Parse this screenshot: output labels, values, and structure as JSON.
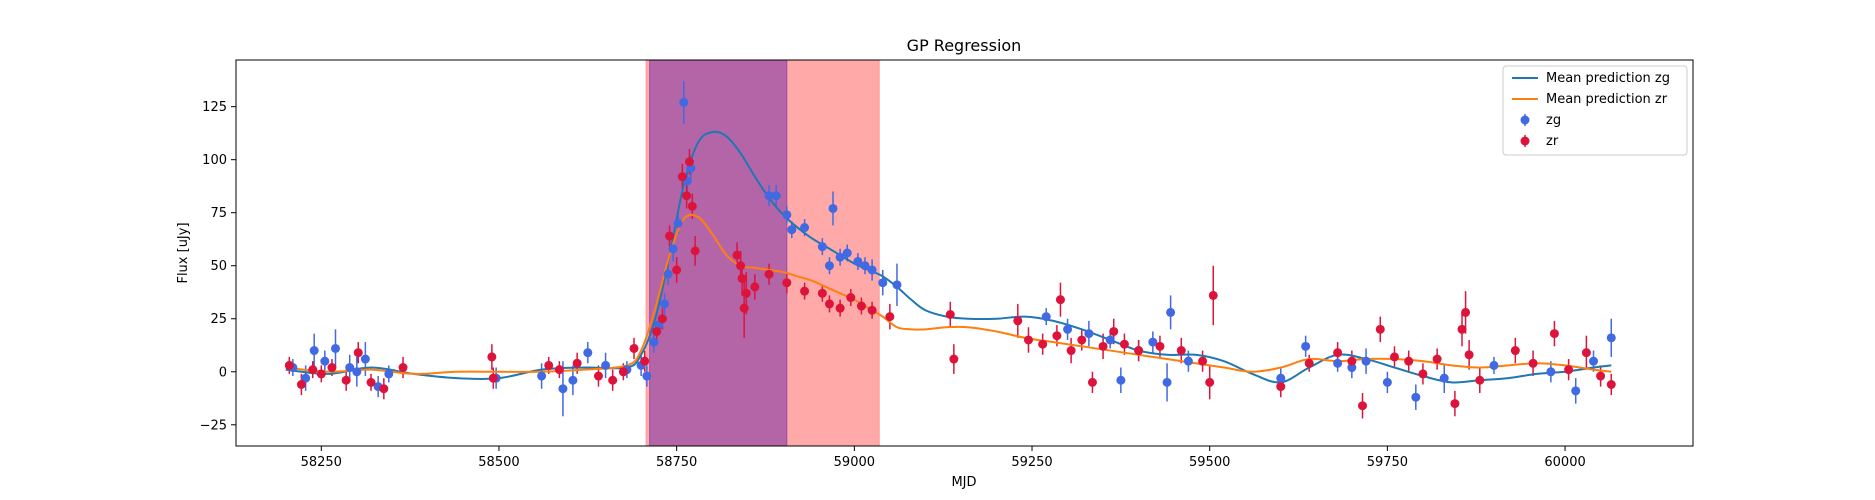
{
  "chart_data": {
    "type": "scatter",
    "title": "GP Regression",
    "xlabel": "MJD",
    "ylabel": "Flux [uJy]",
    "xlim": [
      58130,
      60180
    ],
    "ylim": [
      -35,
      147
    ],
    "xticks": [
      58250,
      58500,
      58750,
      59000,
      59250,
      59500,
      59750,
      60000
    ],
    "yticks": [
      -25,
      0,
      25,
      50,
      75,
      100,
      125
    ],
    "grid": false,
    "legend_position": "top-right",
    "shaded_regions": [
      {
        "x_start": 58707,
        "x_end": 59035,
        "color": "#ff9a9a",
        "opacity": 0.85
      },
      {
        "x_start": 58712,
        "x_end": 58905,
        "color": "#9b4fa8",
        "opacity": 0.75
      }
    ],
    "lines": [
      {
        "name": "Mean prediction zg",
        "color": "#1f77b4",
        "x": [
          58200,
          58260,
          58320,
          58380,
          58440,
          58500,
          58560,
          58620,
          58680,
          58700,
          58720,
          58740,
          58760,
          58780,
          58800,
          58820,
          58840,
          58860,
          58880,
          58900,
          58920,
          58940,
          58960,
          58980,
          59000,
          59020,
          59040,
          59060,
          59080,
          59100,
          59130,
          59160,
          59200,
          59240,
          59280,
          59320,
          59360,
          59400,
          59440,
          59480,
          59520,
          59560,
          59600,
          59640,
          59680,
          59720,
          59760,
          59800,
          59840,
          59880,
          59920,
          59960,
          60000,
          60040,
          60065
        ],
        "y": [
          1,
          -1,
          2,
          -1,
          -3,
          -3,
          1,
          2,
          2,
          8,
          25,
          55,
          88,
          108,
          113,
          111,
          103,
          92,
          82,
          74,
          68,
          63,
          59,
          55,
          51,
          48,
          45,
          40,
          34,
          29,
          26,
          25,
          25,
          26,
          24,
          20,
          15,
          10,
          8,
          8,
          5,
          -1,
          -5,
          2,
          8,
          6,
          2,
          -2,
          -5,
          -4,
          -3,
          -1,
          0,
          2,
          3
        ]
      },
      {
        "name": "Mean prediction zr",
        "color": "#ff7f0e",
        "x": [
          58200,
          58260,
          58320,
          58380,
          58440,
          58500,
          58560,
          58620,
          58680,
          58700,
          58720,
          58740,
          58760,
          58780,
          58800,
          58820,
          58840,
          58860,
          58880,
          58900,
          58920,
          58940,
          58960,
          58980,
          59000,
          59020,
          59040,
          59060,
          59080,
          59100,
          59130,
          59160,
          59200,
          59240,
          59280,
          59320,
          59360,
          59400,
          59440,
          59480,
          59520,
          59560,
          59600,
          59640,
          59680,
          59720,
          59760,
          59800,
          59840,
          59880,
          59920,
          59960,
          60000,
          60040,
          60065
        ],
        "y": [
          2,
          0,
          1,
          -1,
          0,
          0,
          0,
          1,
          3,
          10,
          30,
          55,
          72,
          73,
          65,
          55,
          50,
          49,
          48,
          47,
          45,
          43,
          40,
          37,
          34,
          30,
          26,
          21,
          20,
          20,
          21,
          21,
          19,
          16,
          14,
          12,
          10,
          8,
          6,
          4,
          2,
          0,
          2,
          6,
          5,
          6,
          6,
          5,
          3,
          2,
          3,
          4,
          3,
          1,
          0
        ]
      }
    ],
    "series": [
      {
        "name": "zg",
        "color": "#4169e1",
        "points": [
          {
            "x": 58210,
            "y": 2,
            "err": 4
          },
          {
            "x": 58228,
            "y": -3,
            "err": 6
          },
          {
            "x": 58240,
            "y": 10,
            "err": 8
          },
          {
            "x": 58255,
            "y": 5,
            "err": 5
          },
          {
            "x": 58270,
            "y": 11,
            "err": 9
          },
          {
            "x": 58290,
            "y": 2,
            "err": 6
          },
          {
            "x": 58300,
            "y": 0,
            "err": 7
          },
          {
            "x": 58312,
            "y": 6,
            "err": 8
          },
          {
            "x": 58330,
            "y": -7,
            "err": 5
          },
          {
            "x": 58345,
            "y": -1,
            "err": 4
          },
          {
            "x": 58496,
            "y": -3,
            "err": 5
          },
          {
            "x": 58560,
            "y": -2,
            "err": 6
          },
          {
            "x": 58590,
            "y": -8,
            "err": 13
          },
          {
            "x": 58604,
            "y": -4,
            "err": 7
          },
          {
            "x": 58625,
            "y": 9,
            "err": 5
          },
          {
            "x": 58650,
            "y": 3,
            "err": 6
          },
          {
            "x": 58680,
            "y": 1,
            "err": 4
          },
          {
            "x": 58700,
            "y": 3,
            "err": 5
          },
          {
            "x": 58708,
            "y": -2,
            "err": 5
          },
          {
            "x": 58718,
            "y": 14,
            "err": 5
          },
          {
            "x": 58725,
            "y": 22,
            "err": 4
          },
          {
            "x": 58733,
            "y": 32,
            "err": 5
          },
          {
            "x": 58738,
            "y": 46,
            "err": 5
          },
          {
            "x": 58745,
            "y": 58,
            "err": 6
          },
          {
            "x": 58752,
            "y": 70,
            "err": 5
          },
          {
            "x": 58760,
            "y": 127,
            "err": 10
          },
          {
            "x": 58765,
            "y": 90,
            "err": 6
          },
          {
            "x": 58770,
            "y": 96,
            "err": 6
          },
          {
            "x": 58880,
            "y": 83,
            "err": 5
          },
          {
            "x": 58890,
            "y": 83,
            "err": 5
          },
          {
            "x": 58905,
            "y": 74,
            "err": 4
          },
          {
            "x": 58912,
            "y": 67,
            "err": 4
          },
          {
            "x": 58930,
            "y": 68,
            "err": 4
          },
          {
            "x": 58955,
            "y": 59,
            "err": 4
          },
          {
            "x": 58965,
            "y": 50,
            "err": 4
          },
          {
            "x": 58970,
            "y": 77,
            "err": 8
          },
          {
            "x": 58980,
            "y": 54,
            "err": 4
          },
          {
            "x": 58990,
            "y": 56,
            "err": 4
          },
          {
            "x": 59005,
            "y": 52,
            "err": 4
          },
          {
            "x": 59015,
            "y": 50,
            "err": 4
          },
          {
            "x": 59025,
            "y": 48,
            "err": 5
          },
          {
            "x": 59040,
            "y": 42,
            "err": 6
          },
          {
            "x": 59060,
            "y": 41,
            "err": 10
          },
          {
            "x": 59270,
            "y": 26,
            "err": 4
          },
          {
            "x": 59300,
            "y": 20,
            "err": 5
          },
          {
            "x": 59330,
            "y": 18,
            "err": 6
          },
          {
            "x": 59360,
            "y": 15,
            "err": 4
          },
          {
            "x": 59375,
            "y": -4,
            "err": 6
          },
          {
            "x": 59400,
            "y": 10,
            "err": 5
          },
          {
            "x": 59420,
            "y": 14,
            "err": 5
          },
          {
            "x": 59440,
            "y": -5,
            "err": 9
          },
          {
            "x": 59445,
            "y": 28,
            "err": 8
          },
          {
            "x": 59470,
            "y": 5,
            "err": 5
          },
          {
            "x": 59600,
            "y": -3,
            "err": 5
          },
          {
            "x": 59635,
            "y": 12,
            "err": 5
          },
          {
            "x": 59680,
            "y": 4,
            "err": 4
          },
          {
            "x": 59700,
            "y": 2,
            "err": 5
          },
          {
            "x": 59720,
            "y": 5,
            "err": 6
          },
          {
            "x": 59750,
            "y": -5,
            "err": 5
          },
          {
            "x": 59790,
            "y": -12,
            "err": 6
          },
          {
            "x": 59830,
            "y": -3,
            "err": 7
          },
          {
            "x": 59900,
            "y": 3,
            "err": 4
          },
          {
            "x": 59980,
            "y": 0,
            "err": 5
          },
          {
            "x": 60015,
            "y": -9,
            "err": 6
          },
          {
            "x": 60040,
            "y": 5,
            "err": 5
          },
          {
            "x": 60065,
            "y": 16,
            "err": 9
          }
        ]
      },
      {
        "name": "zr",
        "color": "#dc143c",
        "points": [
          {
            "x": 58205,
            "y": 3,
            "err": 4
          },
          {
            "x": 58222,
            "y": -6,
            "err": 5
          },
          {
            "x": 58238,
            "y": 1,
            "err": 4
          },
          {
            "x": 58250,
            "y": -1,
            "err": 4
          },
          {
            "x": 58265,
            "y": 2,
            "err": 4
          },
          {
            "x": 58285,
            "y": -4,
            "err": 5
          },
          {
            "x": 58302,
            "y": 9,
            "err": 5
          },
          {
            "x": 58320,
            "y": -5,
            "err": 4
          },
          {
            "x": 58338,
            "y": -8,
            "err": 5
          },
          {
            "x": 58365,
            "y": 2,
            "err": 5
          },
          {
            "x": 58490,
            "y": 7,
            "err": 6
          },
          {
            "x": 58492,
            "y": -3,
            "err": 5
          },
          {
            "x": 58570,
            "y": 3,
            "err": 4
          },
          {
            "x": 58585,
            "y": 1,
            "err": 4
          },
          {
            "x": 58610,
            "y": 4,
            "err": 5
          },
          {
            "x": 58640,
            "y": -2,
            "err": 5
          },
          {
            "x": 58660,
            "y": -4,
            "err": 5
          },
          {
            "x": 58675,
            "y": 0,
            "err": 4
          },
          {
            "x": 58690,
            "y": 11,
            "err": 5
          },
          {
            "x": 58705,
            "y": 5,
            "err": 5
          },
          {
            "x": 58722,
            "y": 19,
            "err": 5
          },
          {
            "x": 58730,
            "y": 25,
            "err": 5
          },
          {
            "x": 58740,
            "y": 64,
            "err": 5
          },
          {
            "x": 58750,
            "y": 48,
            "err": 6
          },
          {
            "x": 58758,
            "y": 92,
            "err": 6
          },
          {
            "x": 58764,
            "y": 83,
            "err": 6
          },
          {
            "x": 58768,
            "y": 99,
            "err": 6
          },
          {
            "x": 58772,
            "y": 78,
            "err": 6
          },
          {
            "x": 58776,
            "y": 57,
            "err": 7
          },
          {
            "x": 58835,
            "y": 55,
            "err": 6
          },
          {
            "x": 58840,
            "y": 50,
            "err": 7
          },
          {
            "x": 58842,
            "y": 44,
            "err": 8
          },
          {
            "x": 58845,
            "y": 30,
            "err": 14
          },
          {
            "x": 58848,
            "y": 37,
            "err": 10
          },
          {
            "x": 58860,
            "y": 40,
            "err": 6
          },
          {
            "x": 58880,
            "y": 46,
            "err": 5
          },
          {
            "x": 58905,
            "y": 42,
            "err": 5
          },
          {
            "x": 58930,
            "y": 38,
            "err": 4
          },
          {
            "x": 58955,
            "y": 37,
            "err": 4
          },
          {
            "x": 58965,
            "y": 32,
            "err": 4
          },
          {
            "x": 58980,
            "y": 30,
            "err": 4
          },
          {
            "x": 58995,
            "y": 35,
            "err": 4
          },
          {
            "x": 59010,
            "y": 31,
            "err": 4
          },
          {
            "x": 59025,
            "y": 29,
            "err": 4
          },
          {
            "x": 59050,
            "y": 26,
            "err": 6
          },
          {
            "x": 59135,
            "y": 27,
            "err": 6
          },
          {
            "x": 59140,
            "y": 6,
            "err": 7
          },
          {
            "x": 59230,
            "y": 24,
            "err": 8
          },
          {
            "x": 59245,
            "y": 15,
            "err": 6
          },
          {
            "x": 59265,
            "y": 13,
            "err": 5
          },
          {
            "x": 59285,
            "y": 17,
            "err": 5
          },
          {
            "x": 59290,
            "y": 34,
            "err": 8
          },
          {
            "x": 59305,
            "y": 10,
            "err": 6
          },
          {
            "x": 59320,
            "y": 15,
            "err": 5
          },
          {
            "x": 59335,
            "y": -5,
            "err": 5
          },
          {
            "x": 59350,
            "y": 12,
            "err": 6
          },
          {
            "x": 59365,
            "y": 19,
            "err": 6
          },
          {
            "x": 59380,
            "y": 13,
            "err": 5
          },
          {
            "x": 59400,
            "y": 10,
            "err": 5
          },
          {
            "x": 59430,
            "y": 12,
            "err": 5
          },
          {
            "x": 59460,
            "y": 10,
            "err": 6
          },
          {
            "x": 59490,
            "y": 5,
            "err": 5
          },
          {
            "x": 59500,
            "y": -5,
            "err": 8
          },
          {
            "x": 59505,
            "y": 36,
            "err": 14
          },
          {
            "x": 59600,
            "y": -7,
            "err": 5
          },
          {
            "x": 59640,
            "y": 4,
            "err": 4
          },
          {
            "x": 59680,
            "y": 9,
            "err": 5
          },
          {
            "x": 59700,
            "y": 5,
            "err": 5
          },
          {
            "x": 59715,
            "y": -16,
            "err": 6
          },
          {
            "x": 59740,
            "y": 20,
            "err": 6
          },
          {
            "x": 59760,
            "y": 7,
            "err": 5
          },
          {
            "x": 59780,
            "y": 5,
            "err": 5
          },
          {
            "x": 59800,
            "y": -1,
            "err": 5
          },
          {
            "x": 59820,
            "y": 6,
            "err": 5
          },
          {
            "x": 59845,
            "y": -15,
            "err": 6
          },
          {
            "x": 59855,
            "y": 20,
            "err": 8
          },
          {
            "x": 59860,
            "y": 28,
            "err": 10
          },
          {
            "x": 59865,
            "y": 8,
            "err": 7
          },
          {
            "x": 59880,
            "y": -4,
            "err": 6
          },
          {
            "x": 59930,
            "y": 10,
            "err": 6
          },
          {
            "x": 59955,
            "y": 4,
            "err": 6
          },
          {
            "x": 59985,
            "y": 18,
            "err": 6
          },
          {
            "x": 60005,
            "y": 1,
            "err": 5
          },
          {
            "x": 60030,
            "y": 9,
            "err": 8
          },
          {
            "x": 60050,
            "y": -2,
            "err": 5
          },
          {
            "x": 60065,
            "y": -6,
            "err": 5
          }
        ]
      }
    ]
  }
}
